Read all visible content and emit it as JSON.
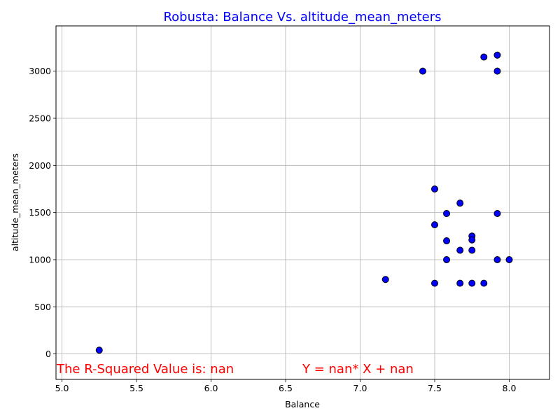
{
  "chart_data": {
    "type": "scatter",
    "title": "Robusta: Balance Vs. altitude_mean_meters",
    "xlabel": "Balance",
    "ylabel": "altitude_mean_meters",
    "xlim": [
      4.96,
      8.27
    ],
    "ylim": [
      -270,
      3480
    ],
    "x_ticks": [
      "5.0",
      "5.5",
      "6.0",
      "6.5",
      "7.0",
      "7.5",
      "8.0"
    ],
    "y_ticks": [
      "0",
      "500",
      "1000",
      "1500",
      "2000",
      "2500",
      "3000"
    ],
    "grid": true,
    "colors": {
      "title": "#0000ff",
      "marker_fill": "#0000ff",
      "marker_edge": "#000000",
      "annotation": "#ff0000",
      "grid": "#b0b0b0"
    },
    "points": [
      {
        "x": 5.25,
        "y": 40
      },
      {
        "x": 7.17,
        "y": 790
      },
      {
        "x": 7.42,
        "y": 3000
      },
      {
        "x": 7.5,
        "y": 1750
      },
      {
        "x": 7.5,
        "y": 1370
      },
      {
        "x": 7.5,
        "y": 750
      },
      {
        "x": 7.58,
        "y": 1490
      },
      {
        "x": 7.58,
        "y": 1200
      },
      {
        "x": 7.58,
        "y": 1000
      },
      {
        "x": 7.67,
        "y": 1600
      },
      {
        "x": 7.67,
        "y": 1100
      },
      {
        "x": 7.67,
        "y": 750
      },
      {
        "x": 7.75,
        "y": 1250
      },
      {
        "x": 7.75,
        "y": 1210
      },
      {
        "x": 7.75,
        "y": 1100
      },
      {
        "x": 7.75,
        "y": 750
      },
      {
        "x": 7.83,
        "y": 3150
      },
      {
        "x": 7.83,
        "y": 750
      },
      {
        "x": 7.92,
        "y": 3170
      },
      {
        "x": 7.92,
        "y": 3000
      },
      {
        "x": 7.92,
        "y": 1490
      },
      {
        "x": 7.92,
        "y": 1000
      },
      {
        "x": 8.0,
        "y": 1000
      }
    ],
    "annotations": {
      "r_squared": "The R-Squared Value is: nan",
      "equation": "Y = nan* X + nan"
    }
  }
}
